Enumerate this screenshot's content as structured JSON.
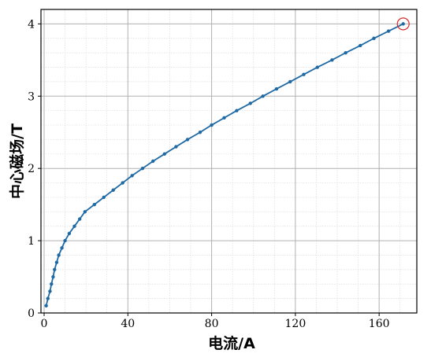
{
  "chart_data": {
    "type": "line",
    "xlabel": "电流/A",
    "ylabel": "中心磁场/T",
    "xlim": [
      -1.5,
      178
    ],
    "ylim": [
      0,
      4.2
    ],
    "xticks": [
      0,
      40,
      80,
      120,
      160
    ],
    "yticks": [
      0,
      1,
      2,
      3,
      4
    ],
    "x_minor_step": 10,
    "y_minor_step": 0.2,
    "grid": true,
    "series": [
      {
        "name": "",
        "color": "#1f6aa5",
        "marker": "circle",
        "x": [
          1.0,
          1.8,
          2.8,
          3.5,
          4.3,
          5.0,
          6.0,
          7.0,
          8.5,
          10.0,
          12.0,
          14.5,
          17.0,
          19.5,
          24.0,
          28.5,
          33.0,
          37.5,
          42.0,
          47.0,
          52.0,
          57.5,
          63.0,
          68.5,
          74.5,
          80.0,
          86.0,
          92.0,
          98.5,
          104.5,
          111.0,
          117.5,
          124.0,
          130.5,
          137.5,
          144.0,
          151.0,
          157.5,
          164.5,
          171.5
        ],
        "y": [
          0.1,
          0.2,
          0.3,
          0.4,
          0.5,
          0.6,
          0.7,
          0.8,
          0.9,
          1.0,
          1.1,
          1.2,
          1.3,
          1.4,
          1.5,
          1.6,
          1.7,
          1.8,
          1.9,
          2.0,
          2.1,
          2.2,
          2.3,
          2.4,
          2.5,
          2.6,
          2.7,
          2.8,
          2.9,
          3.0,
          3.1,
          3.2,
          3.3,
          3.4,
          3.5,
          3.6,
          3.7,
          3.8,
          3.9,
          4.0
        ]
      }
    ],
    "highlight": {
      "x": 171.5,
      "y": 4.0,
      "color": "#d62728",
      "shape": "circle"
    }
  }
}
